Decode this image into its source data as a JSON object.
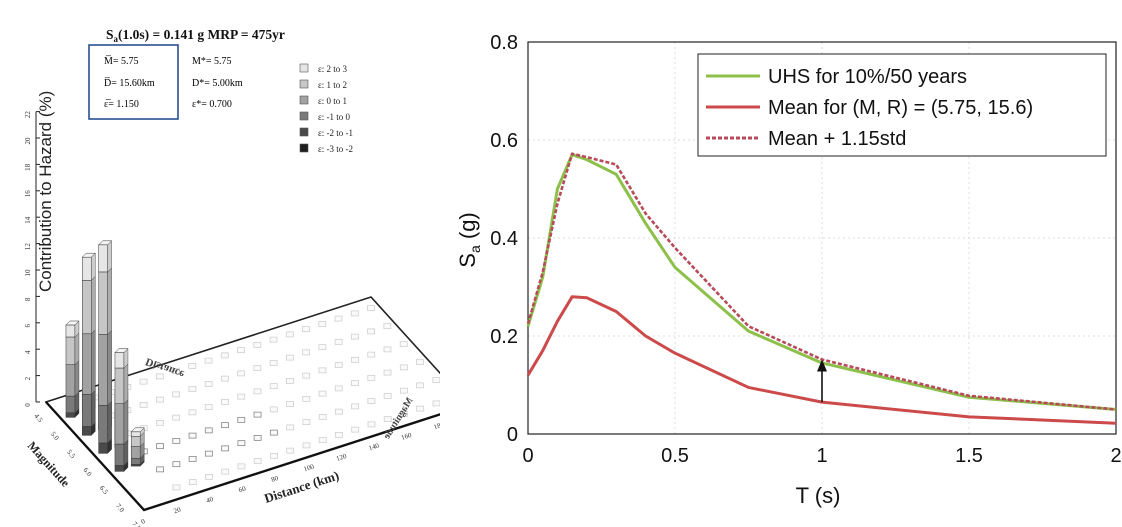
{
  "chart_data": [
    {
      "type": "bar",
      "subtype": "3d-deaggregation-histogram",
      "title": "Sa(1.0s) = 0.141 g  MRP = 475yr",
      "title_parts": {
        "sa": "S",
        "sub": "a",
        "rest": "(1.0s) = 0.141 g  MRP = 475yr"
      },
      "zlabel": "Contribution to Hazard (%)",
      "xlabel": "Magnitude",
      "ylabel": "Distance (km)",
      "back_axis_labels": {
        "distance": "Distance",
        "magnitude": "Magnitude"
      },
      "zlim": [
        0,
        22
      ],
      "z_ticks": [
        "0",
        "2",
        "4",
        "6",
        "8",
        "10",
        "12",
        "14",
        "16",
        "18",
        "20",
        "22"
      ],
      "magnitude_ticks": [
        "4.5",
        "5.0",
        "5.5",
        "6.0",
        "6.5",
        "7.0",
        "7.5"
      ],
      "distance_ticks": [
        "0",
        "20",
        "40",
        "60",
        "80",
        "100",
        "120",
        "140",
        "160",
        "180",
        "200"
      ],
      "stats_box": {
        "mbar": "M̅= 5.75",
        "dbar": "D̅= 15.60km",
        "ebar": "ε̅= 1.150"
      },
      "stats_modal": {
        "mstar": "M*= 5.75",
        "dstar": "D*=  5.00km",
        "estar": "ε*= 0.700"
      },
      "legend": [
        {
          "label": "ε:  2 to  3",
          "color": "#e6e6e6"
        },
        {
          "label": "ε:  1 to  2",
          "color": "#c6c6c6"
        },
        {
          "label": "ε:  0 to  1",
          "color": "#a2a2a2"
        },
        {
          "label": "ε: -1 to  0",
          "color": "#7a7a7a"
        },
        {
          "label": "ε: -2 to -1",
          "color": "#4a4a4a"
        },
        {
          "label": "ε: -3 to -2",
          "color": "#1e1e1e"
        }
      ],
      "tall_bars": [
        {
          "magnitude": 5.0,
          "distance": 5,
          "total": 7.0
        },
        {
          "magnitude": 5.5,
          "distance": 5,
          "total": 13.5
        },
        {
          "magnitude": 6.0,
          "distance": 5,
          "total": 15.8
        },
        {
          "magnitude": 6.5,
          "distance": 5,
          "total": 9.0
        },
        {
          "magnitude": 5.0,
          "distance": 15,
          "total": 1.5
        },
        {
          "magnitude": 5.5,
          "distance": 15,
          "total": 3.5
        },
        {
          "magnitude": 6.0,
          "distance": 15,
          "total": 4.0
        },
        {
          "magnitude": 6.5,
          "distance": 15,
          "total": 2.6
        }
      ]
    },
    {
      "type": "line",
      "xlabel": "T (s)",
      "ylabel": {
        "main": "S",
        "sub": "a",
        "rest": " (g)"
      },
      "xlim": [
        0,
        2
      ],
      "ylim": [
        0,
        0.8
      ],
      "x_ticks": [
        "0",
        "0.5",
        "1",
        "1.5",
        "2"
      ],
      "y_ticks": [
        "0",
        "0.2",
        "0.4",
        "0.6",
        "0.8"
      ],
      "legend_position": "top-right",
      "series": [
        {
          "name": "UHS for 10%/50 years",
          "color": "#8cc04a",
          "style": "solid",
          "x": [
            0,
            0.05,
            0.1,
            0.15,
            0.2,
            0.3,
            0.4,
            0.5,
            0.75,
            1.0,
            1.5,
            2.0
          ],
          "y": [
            0.22,
            0.32,
            0.5,
            0.57,
            0.56,
            0.53,
            0.43,
            0.34,
            0.21,
            0.145,
            0.075,
            0.05
          ]
        },
        {
          "name": "Mean for (M, R) = (5.75, 15.6)",
          "color": "#cc4a4a",
          "style": "solid",
          "x": [
            0,
            0.05,
            0.1,
            0.15,
            0.2,
            0.3,
            0.4,
            0.5,
            0.75,
            1.0,
            1.5,
            2.0
          ],
          "y": [
            0.12,
            0.17,
            0.23,
            0.28,
            0.278,
            0.25,
            0.2,
            0.165,
            0.095,
            0.065,
            0.035,
            0.022
          ]
        },
        {
          "name": "Mean + 1.15std",
          "color": "#b84a5a",
          "style": "dashed",
          "x": [
            0,
            0.05,
            0.1,
            0.15,
            0.2,
            0.3,
            0.4,
            0.5,
            0.75,
            1.0,
            1.5,
            2.0
          ],
          "y": [
            0.225,
            0.33,
            0.47,
            0.572,
            0.565,
            0.55,
            0.45,
            0.38,
            0.22,
            0.152,
            0.078,
            0.05
          ]
        }
      ],
      "annotation": {
        "type": "arrow",
        "x": 1.0,
        "from": 0.065,
        "to": 0.152
      }
    }
  ]
}
